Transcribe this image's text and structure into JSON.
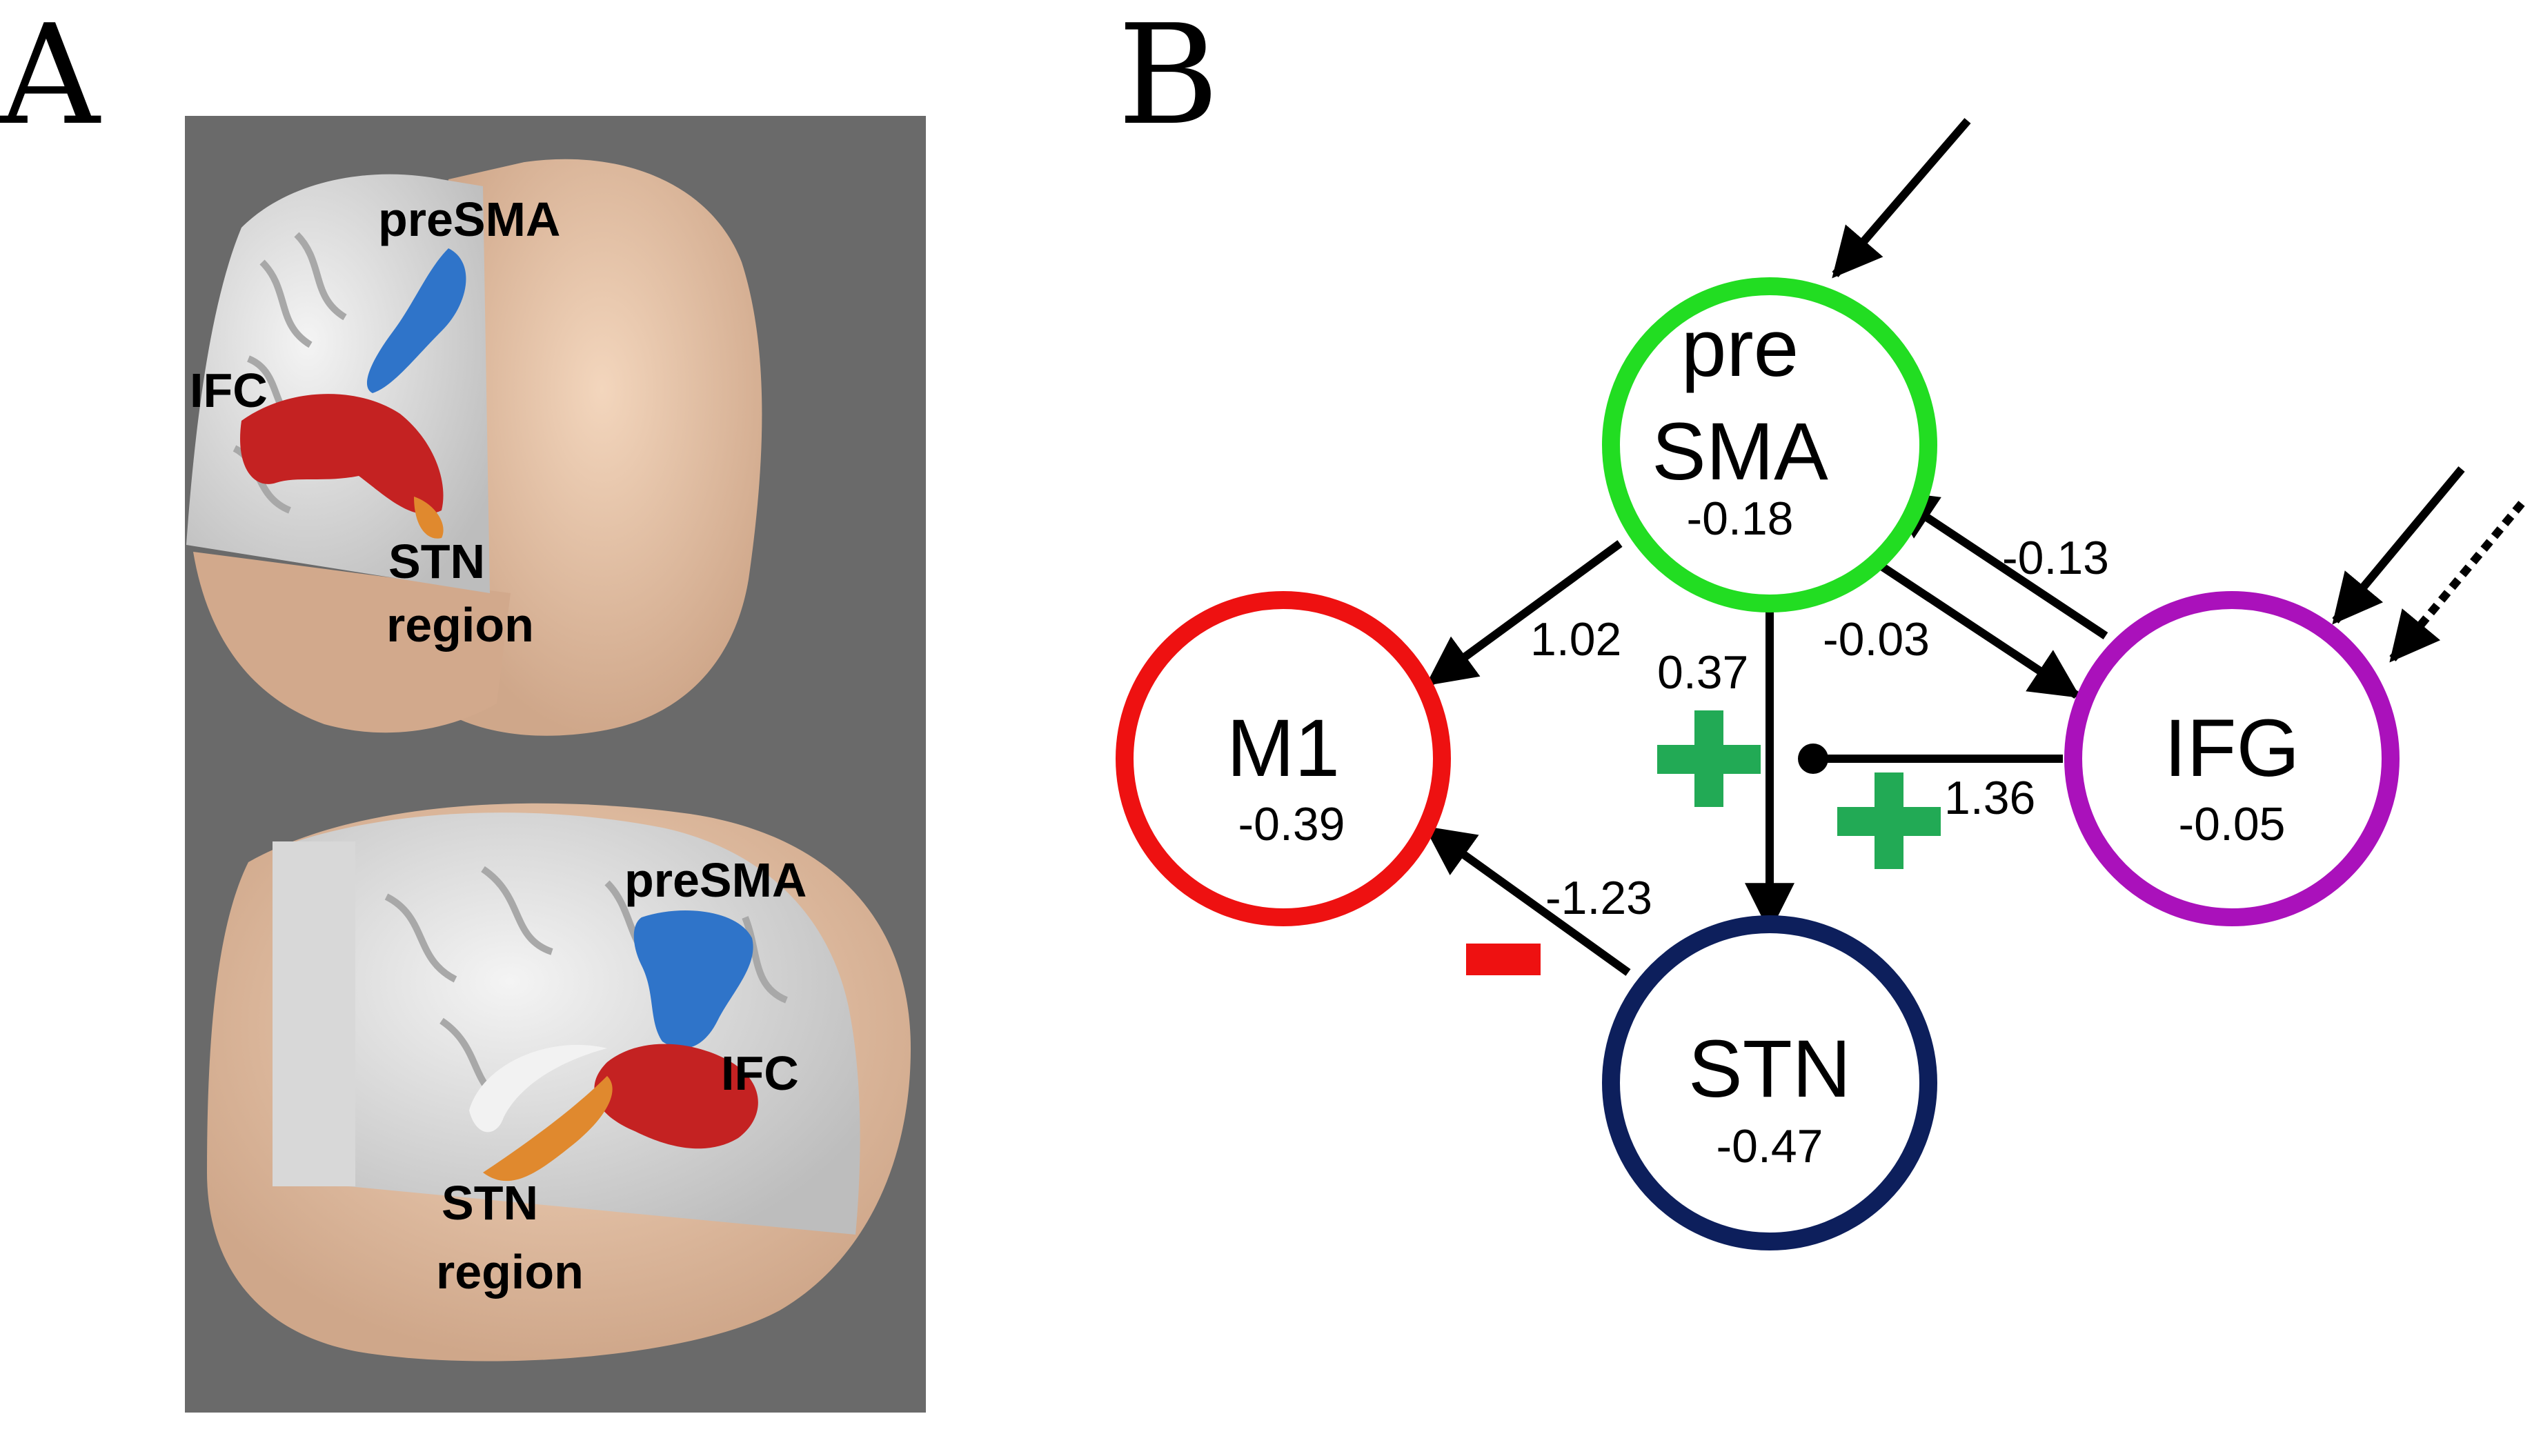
{
  "panels": {
    "a": {
      "letter": "A"
    },
    "b": {
      "letter": "B"
    }
  },
  "brain_top": {
    "label_presma": "preSMA",
    "label_ifc": "IFC",
    "label_stn_1": "STN",
    "label_stn_2": "region"
  },
  "brain_bottom": {
    "label_presma": "preSMA",
    "label_ifc": "IFC",
    "label_stn_1": "STN",
    "label_stn_2": "region"
  },
  "nodes": {
    "presma": {
      "name_line1": "pre",
      "name_line2": "SMA",
      "value": "-0.18",
      "color": "#22dd22"
    },
    "m1": {
      "name": "M1",
      "value": "-0.39",
      "color": "#ee1111"
    },
    "ifg": {
      "name": "IFG",
      "value": "-0.05",
      "color": "#aa11bb"
    },
    "stn": {
      "name": "STN",
      "value": "-0.47",
      "color": "#0d1f5c"
    }
  },
  "edges": {
    "presma_m1": "1.02",
    "presma_stn": "0.37",
    "presma_ifg": "-0.03",
    "ifg_presma": "-0.13",
    "ifg_stn_modulation": "1.36",
    "stn_m1": "-1.23"
  },
  "colors": {
    "plus": "#22aa55",
    "minus": "#ee1111",
    "background_panel_a": "#6a6a6a"
  }
}
